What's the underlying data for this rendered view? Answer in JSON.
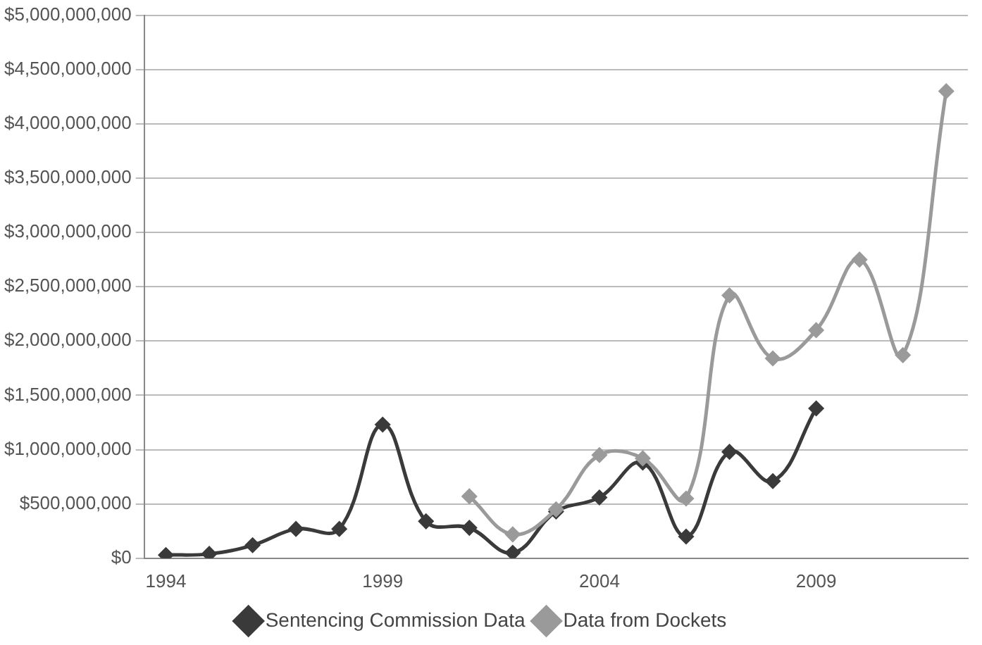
{
  "chart_data": {
    "type": "line",
    "xlim": [
      1993.5,
      2012.5
    ],
    "xticks": [
      1994,
      1999,
      2004,
      2009
    ],
    "ylim": [
      0,
      5000000000
    ],
    "yticks": [
      {
        "value": 0,
        "label": "$0"
      },
      {
        "value": 500000000,
        "label": "$500,000,000"
      },
      {
        "value": 1000000000,
        "label": "$1,000,000,000"
      },
      {
        "value": 1500000000,
        "label": "$1,500,000,000"
      },
      {
        "value": 2000000000,
        "label": "$2,000,000,000"
      },
      {
        "value": 2500000000,
        "label": "$2,500,000,000"
      },
      {
        "value": 3000000000,
        "label": "$3,000,000,000"
      },
      {
        "value": 3500000000,
        "label": "$3,500,000,000"
      },
      {
        "value": 4000000000,
        "label": "$4,000,000,000"
      },
      {
        "value": 4500000000,
        "label": "$4,500,000,000"
      },
      {
        "value": 5000000000,
        "label": "$5,000,000,000"
      }
    ],
    "grid": "y",
    "legend": "bottom",
    "marker": "diamond",
    "series": [
      {
        "name": "Sentencing Commission Data",
        "color": "#3a3a3a",
        "x": [
          1994,
          1995,
          1996,
          1997,
          1998,
          1999,
          2000,
          2001,
          2002,
          2003,
          2004,
          2005,
          2006,
          2007,
          2008,
          2009
        ],
        "values": [
          30000000,
          40000000,
          120000000,
          270000000,
          270000000,
          1230000000,
          340000000,
          280000000,
          50000000,
          430000000,
          560000000,
          880000000,
          200000000,
          980000000,
          710000000,
          1380000000
        ]
      },
      {
        "name": "Data from Dockets",
        "color": "#9a9a9a",
        "x": [
          2001,
          2002,
          2003,
          2004,
          2005,
          2006,
          2007,
          2008,
          2009,
          2010,
          2011,
          2012
        ],
        "values": [
          570000000,
          220000000,
          450000000,
          950000000,
          920000000,
          550000000,
          2420000000,
          1840000000,
          2100000000,
          2750000000,
          1870000000,
          4300000000
        ]
      }
    ]
  }
}
